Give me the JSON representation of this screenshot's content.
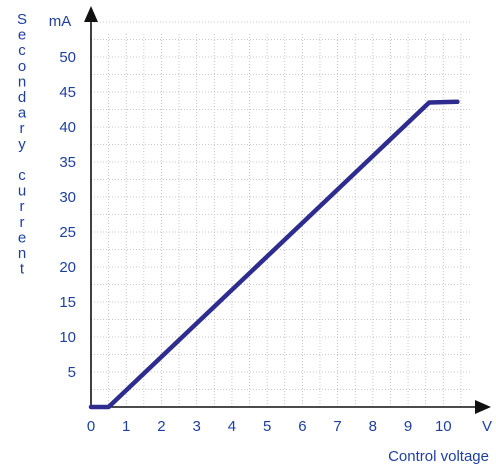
{
  "chart_data": {
    "type": "line",
    "xlabel": "Control voltage",
    "ylabel": "Secondary current",
    "x_unit": "V",
    "y_unit": "mA",
    "xlim": [
      0,
      10.9
    ],
    "ylim": [
      0,
      55
    ],
    "x_ticks": [
      0,
      1,
      2,
      3,
      4,
      5,
      6,
      7,
      8,
      9,
      10
    ],
    "y_ticks": [
      5,
      10,
      15,
      20,
      25,
      30,
      35,
      40,
      45,
      50
    ],
    "x_minor_step": 0.5,
    "y_minor_step": 2.5,
    "grid": true,
    "series": [
      {
        "x": [
          0,
          0.5,
          9.6,
          10.4
        ],
        "y": [
          0,
          0,
          43.5,
          43.6
        ]
      }
    ],
    "colors": {
      "line": "#2e2d8f",
      "text": "#1f3fa0",
      "axis": "#111111",
      "grid": "#b8b8b8"
    }
  }
}
